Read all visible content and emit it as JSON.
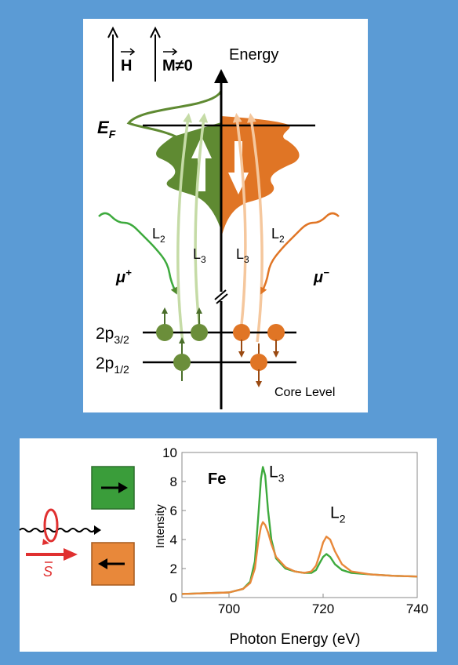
{
  "diagram": {
    "field_h": "H",
    "field_m": "M≠0",
    "energy_label": "Energy",
    "fermi_base": "E",
    "fermi_sub": "F",
    "l2_left": "L",
    "l3_left": "L",
    "l3_right": "L",
    "l2_right": "L",
    "sub_2": "2",
    "sub_3": "3",
    "mu_plus": "μ",
    "mu_plus_sign": "+",
    "mu_minus": "μ",
    "mu_minus_sign": "−",
    "level_32_base": "2p",
    "level_32_sub": "3/2",
    "level_12_base": "2p",
    "level_12_sub": "1/2",
    "core_level": "Core Level",
    "colors": {
      "green": "#5f8a32",
      "orange": "#e07525"
    }
  },
  "helicity": {
    "spin_vector": "S"
  },
  "chart_data": {
    "type": "line",
    "xlabel": "Photon Energy (eV)",
    "ylabel": "Intensity",
    "xlim": [
      690,
      740
    ],
    "ylim": [
      0,
      10
    ],
    "xticks": [
      "700",
      "720",
      "740"
    ],
    "yticks": [
      "0",
      "2",
      "4",
      "6",
      "8",
      "10"
    ],
    "element_label": "Fe",
    "annotations": [
      {
        "base": "L",
        "sub": "3",
        "x": 708.5,
        "y": 8.3
      },
      {
        "base": "L",
        "sub": "2",
        "x": 721.5,
        "y": 5.5
      }
    ],
    "series": [
      {
        "color": "#3daa3d",
        "x": [
          690,
          700,
          703,
          704.5,
          705.5,
          706.2,
          706.8,
          707.2,
          707.7,
          708.3,
          709,
          710,
          712,
          714,
          716,
          717.5,
          718.5,
          719.3,
          720,
          720.7,
          721.5,
          722.5,
          724,
          726,
          730,
          735,
          740
        ],
        "y": [
          0.25,
          0.35,
          0.6,
          1.1,
          2.5,
          5.5,
          8.2,
          9.0,
          8.4,
          6.0,
          4.0,
          2.7,
          2.0,
          1.8,
          1.7,
          1.7,
          1.9,
          2.4,
          2.8,
          3.0,
          2.8,
          2.3,
          1.9,
          1.7,
          1.6,
          1.5,
          1.45
        ]
      },
      {
        "color": "#e8883a",
        "x": [
          690,
          700,
          703,
          704.5,
          705.5,
          706.2,
          706.8,
          707.2,
          707.7,
          708.3,
          709,
          710,
          712,
          714,
          716,
          717.5,
          718.5,
          719.3,
          720,
          720.7,
          721.5,
          722.5,
          724,
          726,
          730,
          735,
          740
        ],
        "y": [
          0.25,
          0.35,
          0.6,
          1.0,
          2.0,
          3.8,
          4.9,
          5.2,
          5.0,
          4.5,
          3.7,
          2.8,
          2.1,
          1.8,
          1.7,
          1.8,
          2.2,
          3.0,
          3.8,
          4.2,
          4.0,
          3.2,
          2.3,
          1.8,
          1.6,
          1.5,
          1.45
        ]
      }
    ]
  }
}
